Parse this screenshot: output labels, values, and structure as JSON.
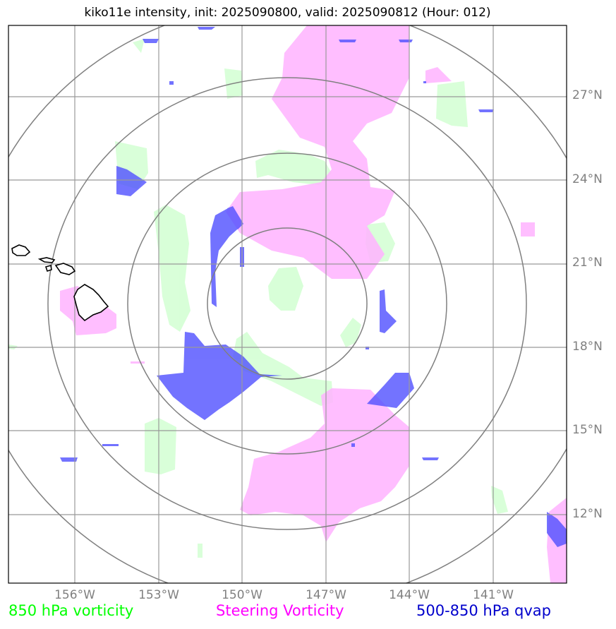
{
  "title": "kiko11e intensity, init: 2025090800, valid: 2025090812 (Hour: 012)",
  "lat_labels": [
    "27°N",
    "24°N",
    "21°N",
    "18°N",
    "15°N",
    "12°N"
  ],
  "lon_labels": [
    "156°W",
    "153°W",
    "150°W",
    "147°W",
    "144°W",
    "141°W"
  ],
  "legend": {
    "vorticity_850": {
      "label": "850 hPa vorticity",
      "color": "#00ff00"
    },
    "steering": {
      "label": "Steering Vorticity",
      "color": "#ff00ff"
    },
    "qvap": {
      "label": "500-850 hPa qvap",
      "color": "#0000cc"
    }
  },
  "colors": {
    "vorticity_fill": "#ccffcc",
    "steering_fill": "#ffb3ff",
    "qvap_fill": "#5050ff",
    "grid": "#999999",
    "range_ring": "#808080",
    "coastline": "#000000"
  }
}
